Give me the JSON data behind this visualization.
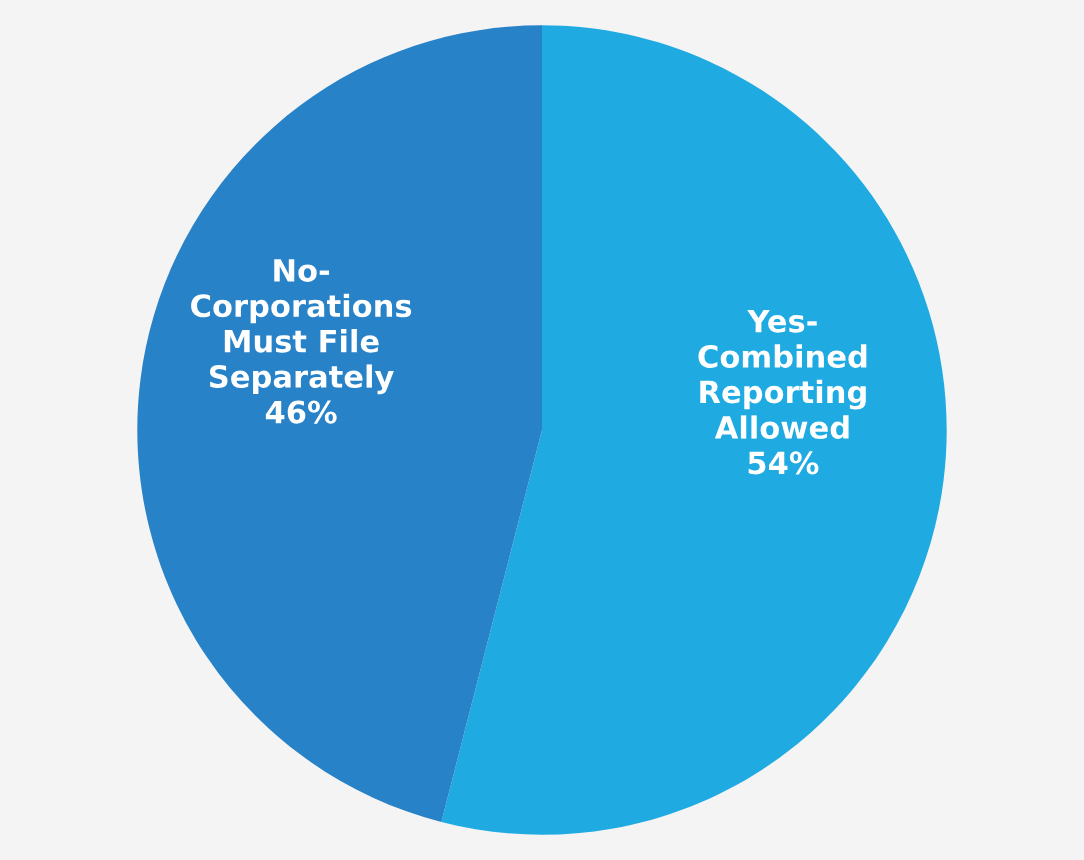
{
  "chart_data": {
    "type": "pie",
    "categories": [
      "Yes-\nCombined\nReporting\nAllowed",
      "No-\nCorporations\nMust File\nSeparately"
    ],
    "values": [
      54,
      46
    ],
    "value_labels": [
      "54%",
      "46%"
    ],
    "colors": [
      "#1fabe2",
      "#2882c8"
    ],
    "legend": false
  }
}
